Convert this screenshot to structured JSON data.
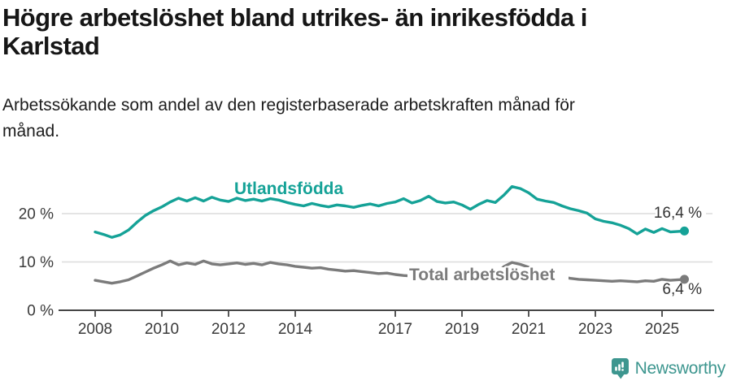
{
  "chart_data": {
    "type": "line",
    "title": "Högre arbetslöshet bland utrikes- än inrikesfödda i\nKarlstad",
    "subtitle": "Arbetssökande som andel av den registerbaserade arbetskraften månad för\nmånad.",
    "legend_position": "inline-labels",
    "grid": true,
    "x_axis": {
      "ticks": [
        2008,
        2010,
        2012,
        2014,
        2017,
        2019,
        2021,
        2023,
        2025
      ],
      "range": [
        2007.8,
        2026.3
      ]
    },
    "y_axis": {
      "ticks": [
        {
          "value": 0,
          "label": "0 %"
        },
        {
          "value": 10,
          "label": "10 %"
        },
        {
          "value": 20,
          "label": "20 %"
        }
      ],
      "range": [
        0,
        27
      ]
    },
    "series": [
      {
        "name": "Utlandsfödda",
        "color": "#15a297",
        "end_label": "16,4 %",
        "end_value": 16.4,
        "points": [
          [
            2008,
            16.2
          ],
          [
            2008.25,
            15.7
          ],
          [
            2008.5,
            15.1
          ],
          [
            2008.75,
            15.6
          ],
          [
            2009,
            16.6
          ],
          [
            2009.25,
            18.2
          ],
          [
            2009.5,
            19.6
          ],
          [
            2009.75,
            20.6
          ],
          [
            2010,
            21.4
          ],
          [
            2010.25,
            22.4
          ],
          [
            2010.5,
            23.2
          ],
          [
            2010.75,
            22.6
          ],
          [
            2011,
            23.3
          ],
          [
            2011.25,
            22.6
          ],
          [
            2011.5,
            23.4
          ],
          [
            2011.75,
            22.8
          ],
          [
            2012,
            22.5
          ],
          [
            2012.25,
            23.2
          ],
          [
            2012.5,
            22.7
          ],
          [
            2012.75,
            23.0
          ],
          [
            2013,
            22.6
          ],
          [
            2013.25,
            23.1
          ],
          [
            2013.5,
            22.8
          ],
          [
            2013.75,
            22.3
          ],
          [
            2014,
            21.9
          ],
          [
            2014.25,
            21.6
          ],
          [
            2014.5,
            22.1
          ],
          [
            2014.75,
            21.7
          ],
          [
            2015,
            21.4
          ],
          [
            2015.25,
            21.8
          ],
          [
            2015.5,
            21.6
          ],
          [
            2015.75,
            21.3
          ],
          [
            2016,
            21.7
          ],
          [
            2016.25,
            22.0
          ],
          [
            2016.5,
            21.6
          ],
          [
            2016.75,
            22.1
          ],
          [
            2017,
            22.4
          ],
          [
            2017.25,
            23.1
          ],
          [
            2017.5,
            22.2
          ],
          [
            2017.75,
            22.7
          ],
          [
            2018,
            23.6
          ],
          [
            2018.25,
            22.5
          ],
          [
            2018.5,
            22.2
          ],
          [
            2018.75,
            22.4
          ],
          [
            2019,
            21.8
          ],
          [
            2019.25,
            20.9
          ],
          [
            2019.5,
            21.9
          ],
          [
            2019.75,
            22.7
          ],
          [
            2020,
            22.3
          ],
          [
            2020.25,
            23.8
          ],
          [
            2020.5,
            25.6
          ],
          [
            2020.75,
            25.2
          ],
          [
            2021,
            24.3
          ],
          [
            2021.25,
            23.0
          ],
          [
            2021.5,
            22.6
          ],
          [
            2021.75,
            22.3
          ],
          [
            2022,
            21.6
          ],
          [
            2022.25,
            21.0
          ],
          [
            2022.5,
            20.6
          ],
          [
            2022.75,
            20.1
          ],
          [
            2023,
            18.9
          ],
          [
            2023.25,
            18.4
          ],
          [
            2023.5,
            18.1
          ],
          [
            2023.75,
            17.6
          ],
          [
            2024,
            16.9
          ],
          [
            2024.25,
            15.8
          ],
          [
            2024.5,
            16.8
          ],
          [
            2024.75,
            16.1
          ],
          [
            2025,
            16.9
          ],
          [
            2025.25,
            16.2
          ],
          [
            2025.67,
            16.4
          ]
        ]
      },
      {
        "name": "Total arbetslöshet",
        "color": "#7b7b7b",
        "end_label": "6,4 %",
        "end_value": 6.4,
        "points": [
          [
            2008,
            6.2
          ],
          [
            2008.25,
            5.9
          ],
          [
            2008.5,
            5.6
          ],
          [
            2008.75,
            5.9
          ],
          [
            2009,
            6.3
          ],
          [
            2009.25,
            7.1
          ],
          [
            2009.5,
            7.9
          ],
          [
            2009.75,
            8.7
          ],
          [
            2010,
            9.4
          ],
          [
            2010.25,
            10.2
          ],
          [
            2010.5,
            9.4
          ],
          [
            2010.75,
            9.8
          ],
          [
            2011,
            9.5
          ],
          [
            2011.25,
            10.2
          ],
          [
            2011.5,
            9.6
          ],
          [
            2011.75,
            9.4
          ],
          [
            2012,
            9.6
          ],
          [
            2012.25,
            9.8
          ],
          [
            2012.5,
            9.5
          ],
          [
            2012.75,
            9.7
          ],
          [
            2013,
            9.4
          ],
          [
            2013.25,
            9.9
          ],
          [
            2013.5,
            9.6
          ],
          [
            2013.75,
            9.4
          ],
          [
            2014,
            9.1
          ],
          [
            2014.25,
            8.9
          ],
          [
            2014.5,
            8.7
          ],
          [
            2014.75,
            8.8
          ],
          [
            2015,
            8.5
          ],
          [
            2015.25,
            8.3
          ],
          [
            2015.5,
            8.1
          ],
          [
            2015.75,
            8.2
          ],
          [
            2016,
            8.0
          ],
          [
            2016.25,
            7.8
          ],
          [
            2016.5,
            7.6
          ],
          [
            2016.75,
            7.7
          ],
          [
            2017,
            7.4
          ],
          [
            2017.25,
            7.2
          ],
          [
            2017.5,
            7.1
          ],
          [
            2017.75,
            7.2
          ],
          [
            2018,
            7.0
          ],
          [
            2018.25,
            6.9
          ],
          [
            2018.5,
            6.8
          ],
          [
            2018.75,
            6.9
          ],
          [
            2019,
            6.8
          ],
          [
            2019.25,
            6.9
          ],
          [
            2019.5,
            6.8
          ],
          [
            2019.75,
            7.0
          ],
          [
            2020,
            7.3
          ],
          [
            2020.25,
            9.0
          ],
          [
            2020.5,
            9.9
          ],
          [
            2020.75,
            9.5
          ],
          [
            2021,
            8.9
          ],
          [
            2021.25,
            8.3
          ],
          [
            2021.5,
            7.8
          ],
          [
            2021.75,
            7.3
          ],
          [
            2022,
            6.9
          ],
          [
            2022.25,
            6.6
          ],
          [
            2022.5,
            6.4
          ],
          [
            2022.75,
            6.3
          ],
          [
            2023,
            6.2
          ],
          [
            2023.25,
            6.1
          ],
          [
            2023.5,
            6.0
          ],
          [
            2023.75,
            6.1
          ],
          [
            2024,
            6.0
          ],
          [
            2024.25,
            5.9
          ],
          [
            2024.5,
            6.1
          ],
          [
            2024.75,
            6.0
          ],
          [
            2025,
            6.4
          ],
          [
            2025.25,
            6.2
          ],
          [
            2025.67,
            6.4
          ]
        ]
      }
    ]
  },
  "footer": {
    "brand": "Newsworthy",
    "logo_color": "#3d968f"
  }
}
